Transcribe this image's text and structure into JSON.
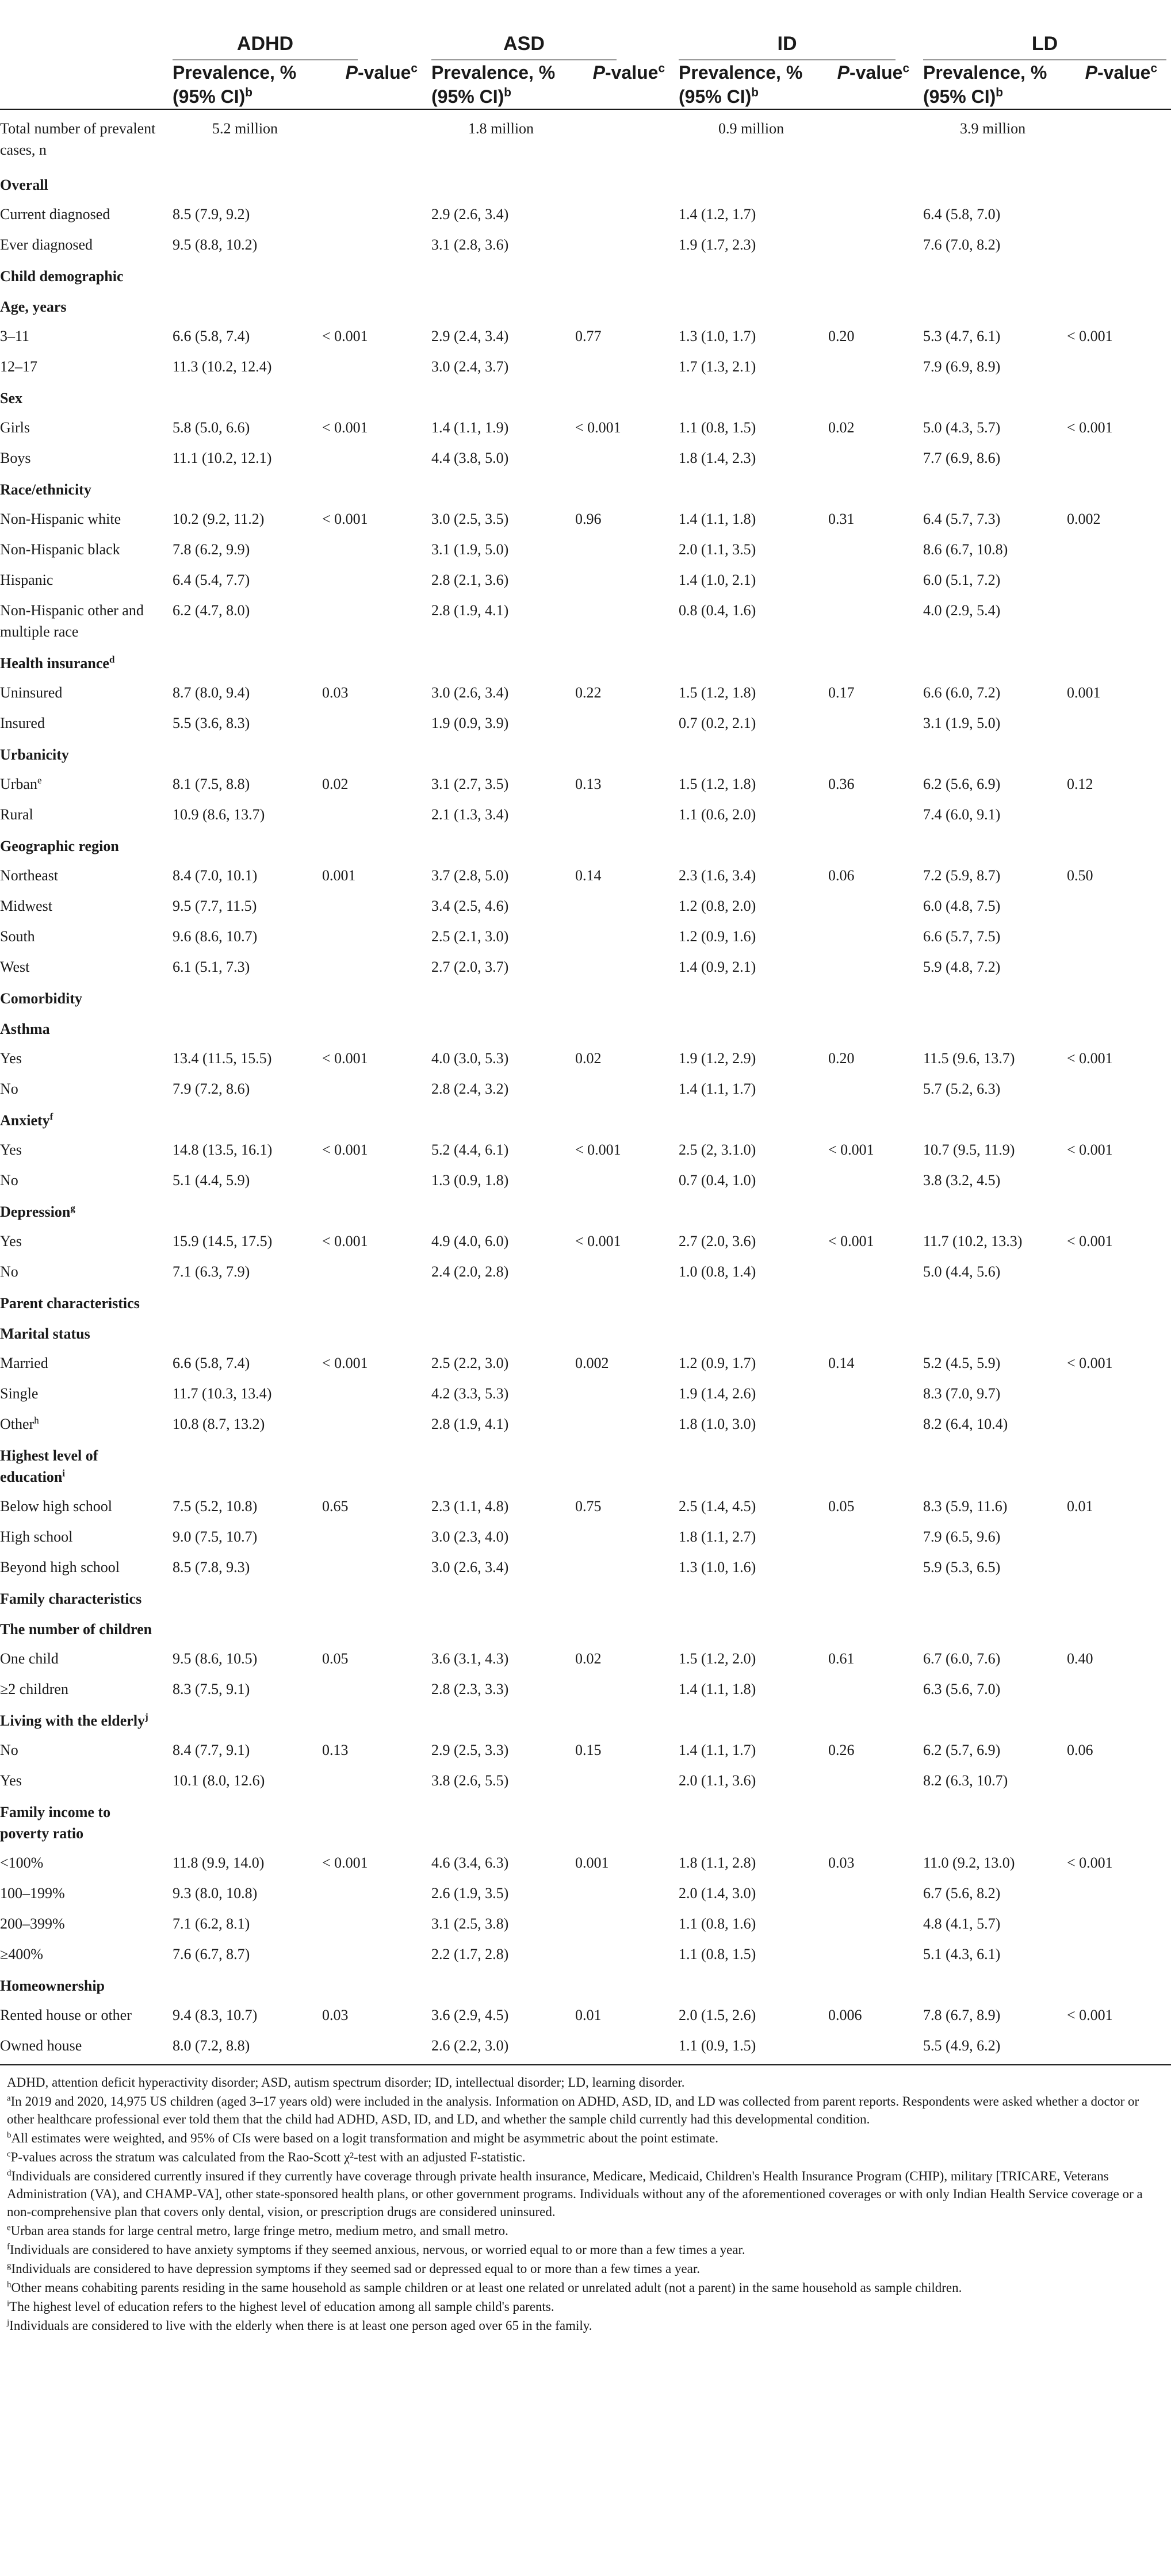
{
  "groups": [
    "ADHD",
    "ASD",
    "ID",
    "LD"
  ],
  "column_headers": {
    "prevalence": "Prevalence, % (95% CI)",
    "prevalence_sup": "b",
    "pvalue": "P-value",
    "pvalue_sup": "c"
  },
  "rows": [
    {
      "t": "r",
      "label": "Total number of prevalent cases, n",
      "v": [
        "5.2 million",
        "",
        "1.8 million",
        "",
        "0.9 million",
        "",
        "3.9 million",
        ""
      ]
    },
    {
      "t": "s",
      "label": "Overall"
    },
    {
      "t": "r",
      "label": "Current diagnosed",
      "v": [
        "8.5 (7.9, 9.2)",
        "",
        "2.9 (2.6, 3.4)",
        "",
        "1.4 (1.2, 1.7)",
        "",
        "6.4 (5.8, 7.0)",
        ""
      ]
    },
    {
      "t": "r",
      "label": "Ever diagnosed",
      "v": [
        "9.5 (8.8, 10.2)",
        "",
        "3.1 (2.8, 3.6)",
        "",
        "1.9 (1.7, 2.3)",
        "",
        "7.6 (7.0, 8.2)",
        ""
      ]
    },
    {
      "t": "s",
      "label": "Child demographic"
    },
    {
      "t": "s",
      "label": "Age, years"
    },
    {
      "t": "r",
      "label": "3–11",
      "v": [
        "6.6 (5.8, 7.4)",
        "< 0.001",
        "2.9 (2.4, 3.4)",
        "0.77",
        "1.3 (1.0, 1.7)",
        "0.20",
        "5.3 (4.7, 6.1)",
        "< 0.001"
      ]
    },
    {
      "t": "r",
      "label": "12–17",
      "v": [
        "11.3 (10.2, 12.4)",
        "",
        "3.0 (2.4, 3.7)",
        "",
        "1.7 (1.3, 2.1)",
        "",
        "7.9 (6.9, 8.9)",
        ""
      ]
    },
    {
      "t": "s",
      "label": "Sex"
    },
    {
      "t": "r",
      "label": "Girls",
      "v": [
        "5.8 (5.0, 6.6)",
        "< 0.001",
        "1.4 (1.1, 1.9)",
        "< 0.001",
        "1.1 (0.8, 1.5)",
        "0.02",
        "5.0 (4.3, 5.7)",
        "< 0.001"
      ]
    },
    {
      "t": "r",
      "label": "Boys",
      "v": [
        "11.1 (10.2, 12.1)",
        "",
        "4.4 (3.8, 5.0)",
        "",
        "1.8 (1.4, 2.3)",
        "",
        "7.7 (6.9, 8.6)",
        ""
      ]
    },
    {
      "t": "s",
      "label": "Race/ethnicity"
    },
    {
      "t": "r",
      "label": "Non-Hispanic white",
      "v": [
        "10.2 (9.2, 11.2)",
        "< 0.001",
        "3.0 (2.5, 3.5)",
        "0.96",
        "1.4 (1.1, 1.8)",
        "0.31",
        "6.4 (5.7, 7.3)",
        "0.002"
      ]
    },
    {
      "t": "r",
      "label": "Non-Hispanic black",
      "v": [
        "7.8 (6.2, 9.9)",
        "",
        "3.1 (1.9, 5.0)",
        "",
        "2.0 (1.1, 3.5)",
        "",
        "8.6 (6.7, 10.8)",
        ""
      ]
    },
    {
      "t": "r",
      "label": "Hispanic",
      "v": [
        "6.4 (5.4, 7.7)",
        "",
        "2.8 (2.1, 3.6)",
        "",
        "1.4 (1.0, 2.1)",
        "",
        "6.0 (5.1, 7.2)",
        ""
      ]
    },
    {
      "t": "r",
      "label": "Non-Hispanic other and multiple race",
      "v": [
        "6.2 (4.7, 8.0)",
        "",
        "2.8 (1.9, 4.1)",
        "",
        "0.8 (0.4, 1.6)",
        "",
        "4.0 (2.9, 5.4)",
        ""
      ]
    },
    {
      "t": "s",
      "label": "Health insurance",
      "sup": "d"
    },
    {
      "t": "r",
      "label": "Uninsured",
      "v": [
        "8.7 (8.0, 9.4)",
        "0.03",
        "3.0 (2.6, 3.4)",
        "0.22",
        "1.5 (1.2, 1.8)",
        "0.17",
        "6.6 (6.0, 7.2)",
        "0.001"
      ]
    },
    {
      "t": "r",
      "label": "Insured",
      "v": [
        "5.5 (3.6, 8.3)",
        "",
        "1.9 (0.9, 3.9)",
        "",
        "0.7 (0.2, 2.1)",
        "",
        "3.1 (1.9, 5.0)",
        ""
      ]
    },
    {
      "t": "s",
      "label": "Urbanicity"
    },
    {
      "t": "r",
      "label": "Urban",
      "sup": "e",
      "v": [
        "8.1 (7.5, 8.8)",
        "0.02",
        "3.1 (2.7, 3.5)",
        "0.13",
        "1.5 (1.2, 1.8)",
        "0.36",
        "6.2 (5.6, 6.9)",
        "0.12"
      ]
    },
    {
      "t": "r",
      "label": "Rural",
      "v": [
        "10.9 (8.6, 13.7)",
        "",
        "2.1 (1.3, 3.4)",
        "",
        "1.1 (0.6, 2.0)",
        "",
        "7.4 (6.0, 9.1)",
        ""
      ]
    },
    {
      "t": "s",
      "label": "Geographic region"
    },
    {
      "t": "r",
      "label": "Northeast",
      "v": [
        "8.4 (7.0, 10.1)",
        "0.001",
        "3.7 (2.8, 5.0)",
        "0.14",
        "2.3 (1.6, 3.4)",
        "0.06",
        "7.2 (5.9, 8.7)",
        "0.50"
      ]
    },
    {
      "t": "r",
      "label": "Midwest",
      "v": [
        "9.5 (7.7, 11.5)",
        "",
        "3.4 (2.5, 4.6)",
        "",
        "1.2 (0.8, 2.0)",
        "",
        "6.0 (4.8, 7.5)",
        ""
      ]
    },
    {
      "t": "r",
      "label": "South",
      "v": [
        "9.6 (8.6, 10.7)",
        "",
        "2.5 (2.1, 3.0)",
        "",
        "1.2 (0.9, 1.6)",
        "",
        "6.6 (5.7, 7.5)",
        ""
      ]
    },
    {
      "t": "r",
      "label": "West",
      "v": [
        "6.1 (5.1, 7.3)",
        "",
        "2.7 (2.0, 3.7)",
        "",
        "1.4 (0.9, 2.1)",
        "",
        "5.9 (4.8, 7.2)",
        ""
      ]
    },
    {
      "t": "s",
      "label": "Comorbidity"
    },
    {
      "t": "s",
      "label": "Asthma"
    },
    {
      "t": "r",
      "label": "Yes",
      "v": [
        "13.4 (11.5, 15.5)",
        "< 0.001",
        "4.0 (3.0, 5.3)",
        "0.02",
        "1.9 (1.2, 2.9)",
        "0.20",
        "11.5 (9.6, 13.7)",
        "< 0.001"
      ]
    },
    {
      "t": "r",
      "label": "No",
      "v": [
        "7.9 (7.2, 8.6)",
        "",
        "2.8 (2.4, 3.2)",
        "",
        "1.4 (1.1, 1.7)",
        "",
        "5.7 (5.2, 6.3)",
        ""
      ]
    },
    {
      "t": "s",
      "label": "Anxiety",
      "sup": "f"
    },
    {
      "t": "r",
      "label": "Yes",
      "v": [
        "14.8 (13.5, 16.1)",
        "< 0.001",
        "5.2 (4.4, 6.1)",
        "< 0.001",
        "2.5 (2, 3.1.0)",
        "< 0.001",
        "10.7 (9.5, 11.9)",
        "< 0.001"
      ]
    },
    {
      "t": "r",
      "label": "No",
      "v": [
        "5.1 (4.4, 5.9)",
        "",
        "1.3 (0.9, 1.8)",
        "",
        "0.7 (0.4, 1.0)",
        "",
        "3.8 (3.2, 4.5)",
        ""
      ]
    },
    {
      "t": "s",
      "label": "Depression",
      "sup": "g"
    },
    {
      "t": "r",
      "label": "Yes",
      "v": [
        "15.9 (14.5, 17.5)",
        "< 0.001",
        "4.9 (4.0, 6.0)",
        "< 0.001",
        "2.7 (2.0, 3.6)",
        "< 0.001",
        "11.7 (10.2, 13.3)",
        "< 0.001"
      ]
    },
    {
      "t": "r",
      "label": "No",
      "v": [
        "7.1 (6.3, 7.9)",
        "",
        "2.4 (2.0, 2.8)",
        "",
        "1.0 (0.8, 1.4)",
        "",
        "5.0 (4.4, 5.6)",
        ""
      ]
    },
    {
      "t": "s",
      "label": "Parent characteristics"
    },
    {
      "t": "s",
      "label": "Marital status"
    },
    {
      "t": "r",
      "label": "Married",
      "v": [
        "6.6 (5.8, 7.4)",
        "< 0.001",
        "2.5 (2.2, 3.0)",
        "0.002",
        "1.2 (0.9, 1.7)",
        "0.14",
        "5.2 (4.5, 5.9)",
        "< 0.001"
      ]
    },
    {
      "t": "r",
      "label": "Single",
      "v": [
        "11.7 (10.3, 13.4)",
        "",
        "4.2 (3.3, 5.3)",
        "",
        "1.9 (1.4, 2.6)",
        "",
        "8.3 (7.0, 9.7)",
        ""
      ]
    },
    {
      "t": "r",
      "label": "Other",
      "sup": "h",
      "v": [
        "10.8 (8.7, 13.2)",
        "",
        "2.8 (1.9, 4.1)",
        "",
        "1.8 (1.0, 3.0)",
        "",
        "8.2 (6.4, 10.4)",
        ""
      ]
    },
    {
      "t": "s",
      "label": "Highest level of education",
      "sup": "i"
    },
    {
      "t": "r",
      "label": "Below high school",
      "v": [
        "7.5 (5.2, 10.8)",
        "0.65",
        "2.3 (1.1, 4.8)",
        "0.75",
        "2.5 (1.4, 4.5)",
        "0.05",
        "8.3 (5.9, 11.6)",
        "0.01"
      ]
    },
    {
      "t": "r",
      "label": "High school",
      "v": [
        "9.0 (7.5, 10.7)",
        "",
        "3.0 (2.3, 4.0)",
        "",
        "1.8 (1.1, 2.7)",
        "",
        "7.9 (6.5, 9.6)",
        ""
      ]
    },
    {
      "t": "r",
      "label": "Beyond high school",
      "v": [
        "8.5 (7.8, 9.3)",
        "",
        "3.0 (2.6, 3.4)",
        "",
        "1.3 (1.0, 1.6)",
        "",
        "5.9 (5.3, 6.5)",
        ""
      ]
    },
    {
      "t": "s",
      "label": "Family characteristics"
    },
    {
      "t": "s",
      "label": "The number of children"
    },
    {
      "t": "r",
      "label": "One child",
      "v": [
        "9.5 (8.6, 10.5)",
        "0.05",
        "3.6 (3.1, 4.3)",
        "0.02",
        "1.5 (1.2, 2.0)",
        "0.61",
        "6.7 (6.0, 7.6)",
        "0.40"
      ]
    },
    {
      "t": "r",
      "label": "≥2 children",
      "v": [
        "8.3 (7.5, 9.1)",
        "",
        "2.8 (2.3, 3.3)",
        "",
        "1.4 (1.1, 1.8)",
        "",
        "6.3 (5.6, 7.0)",
        ""
      ]
    },
    {
      "t": "s",
      "label": "Living with the elderly",
      "sup": "j"
    },
    {
      "t": "r",
      "label": "No",
      "v": [
        "8.4 (7.7, 9.1)",
        "0.13",
        "2.9 (2.5, 3.3)",
        "0.15",
        "1.4 (1.1, 1.7)",
        "0.26",
        "6.2 (5.7, 6.9)",
        "0.06"
      ]
    },
    {
      "t": "r",
      "label": "Yes",
      "v": [
        "10.1 (8.0, 12.6)",
        "",
        "3.8 (2.6, 5.5)",
        "",
        "2.0 (1.1, 3.6)",
        "",
        "8.2 (6.3, 10.7)",
        ""
      ]
    },
    {
      "t": "s",
      "label": "Family income to poverty ratio"
    },
    {
      "t": "r",
      "label": "<100%",
      "v": [
        "11.8 (9.9, 14.0)",
        "< 0.001",
        "4.6 (3.4, 6.3)",
        "0.001",
        "1.8 (1.1, 2.8)",
        "0.03",
        "11.0 (9.2, 13.0)",
        "< 0.001"
      ]
    },
    {
      "t": "r",
      "label": "100–199%",
      "v": [
        "9.3 (8.0, 10.8)",
        "",
        "2.6 (1.9, 3.5)",
        "",
        "2.0 (1.4, 3.0)",
        "",
        "6.7 (5.6, 8.2)",
        ""
      ]
    },
    {
      "t": "r",
      "label": "200–399%",
      "v": [
        "7.1 (6.2, 8.1)",
        "",
        "3.1 (2.5, 3.8)",
        "",
        "1.1 (0.8, 1.6)",
        "",
        "4.8 (4.1, 5.7)",
        ""
      ]
    },
    {
      "t": "r",
      "label": "≥400%",
      "v": [
        "7.6 (6.7, 8.7)",
        "",
        "2.2 (1.7, 2.8)",
        "",
        "1.1 (0.8, 1.5)",
        "",
        "5.1 (4.3, 6.1)",
        ""
      ]
    },
    {
      "t": "s",
      "label": "Homeownership"
    },
    {
      "t": "r",
      "label": "Rented house or other",
      "v": [
        "9.4 (8.3, 10.7)",
        "0.03",
        "3.6 (2.9, 4.5)",
        "0.01",
        "2.0 (1.5, 2.6)",
        "0.006",
        "7.8 (6.7, 8.9)",
        "< 0.001"
      ]
    },
    {
      "t": "r",
      "label": "Owned house",
      "v": [
        "8.0 (7.2, 8.8)",
        "",
        "2.6 (2.2, 3.0)",
        "",
        "1.1 (0.9, 1.5)",
        "",
        "5.5 (4.9, 6.2)",
        ""
      ]
    }
  ],
  "footnotes": [
    {
      "sup": "",
      "text": "ADHD, attention deficit hyperactivity disorder; ASD, autism spectrum disorder; ID, intellectual disorder; LD, learning disorder."
    },
    {
      "sup": "a",
      "text": "In 2019 and 2020, 14,975 US children (aged 3–17 years old) were included in the analysis. Information on ADHD, ASD, ID, and LD was collected from parent reports. Respondents were asked whether a doctor or other healthcare professional ever told them that the child had ADHD, ASD, ID, and LD, and whether the sample child currently had this developmental condition."
    },
    {
      "sup": "b",
      "text": "All estimates were weighted, and 95% of CIs were based on a logit transformation and might be asymmetric about the point estimate."
    },
    {
      "sup": "c",
      "text": "P-values across the stratum was calculated from the Rao-Scott χ²-test with an adjusted F-statistic."
    },
    {
      "sup": "d",
      "text": "Individuals are considered currently insured if they currently have coverage through private health insurance, Medicare, Medicaid, Children's Health Insurance Program (CHIP), military [TRICARE, Veterans Administration (VA), and CHAMP-VA], other state-sponsored health plans, or other government programs. Individuals without any of the aforementioned coverages or with only Indian Health Service coverage or a non-comprehensive plan that covers only dental, vision, or prescription drugs are considered uninsured."
    },
    {
      "sup": "e",
      "text": "Urban area stands for large central metro, large fringe metro, medium metro, and small metro."
    },
    {
      "sup": "f",
      "text": "Individuals are considered to have anxiety symptoms if they seemed anxious, nervous, or worried equal to or more than a few times a year."
    },
    {
      "sup": "g",
      "text": "Individuals are considered to have depression symptoms if they seemed sad or depressed equal to or more than a few times a year."
    },
    {
      "sup": "h",
      "text": "Other means cohabiting parents residing in the same household as sample children or at least one related or unrelated adult (not a parent) in the same household as sample children."
    },
    {
      "sup": "i",
      "text": "The highest level of education refers to the highest level of education among all sample child's parents."
    },
    {
      "sup": "j",
      "text": "Individuals are considered to live with the elderly when there is at least one person aged over 65 in the family."
    }
  ]
}
